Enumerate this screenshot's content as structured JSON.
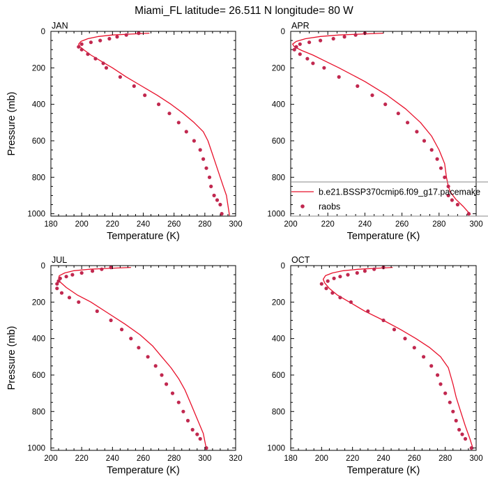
{
  "title": "Miami_FL  latitude= 26.511 N longitude= 80 W",
  "legend": {
    "model_label": "b.e21.BSSP370cmip6.f09_g17.pacemake",
    "obs_label": "raobs"
  },
  "colors": {
    "model": "#e8102a",
    "obs": "#c1284f",
    "axis": "#000000"
  },
  "chart_data": [
    {
      "type": "line",
      "panel": "JAN",
      "xlabel": "Temperature (K)",
      "ylabel": "Pressure (mb)",
      "xlim": [
        180,
        300
      ],
      "ylim": [
        1013,
        0
      ],
      "xticks": [
        "180",
        "200",
        "220",
        "240",
        "260",
        "280",
        "300"
      ],
      "yticks": [
        "0",
        "200",
        "400",
        "600",
        "800",
        "1000"
      ],
      "series": [
        {
          "name": "b.e21.BSSP370cmip6.f09_g17.pacemake",
          "kind": "line",
          "x": [
            244,
            232,
            220,
            211,
            204,
            199.5,
            198,
            199,
            202,
            206,
            212,
            220,
            229,
            239,
            249,
            258,
            266,
            273,
            279,
            282,
            284,
            286,
            288,
            290,
            292,
            294,
            296
          ],
          "y": [
            10,
            15,
            20,
            28,
            40,
            55,
            70,
            85,
            105,
            130,
            160,
            200,
            250,
            300,
            350,
            400,
            450,
            500,
            550,
            600,
            650,
            700,
            750,
            800,
            850,
            900,
            1010
          ]
        },
        {
          "name": "raobs",
          "kind": "points",
          "x": [
            237,
            229,
            223,
            218,
            212,
            206,
            200,
            198,
            200,
            204,
            209,
            214,
            216,
            225,
            234,
            241,
            250,
            257,
            263,
            268,
            273,
            277,
            279,
            281,
            283,
            284,
            286,
            288,
            290,
            291
          ],
          "y": [
            10,
            20,
            30,
            40,
            50,
            60,
            70,
            85,
            100,
            125,
            150,
            175,
            200,
            250,
            300,
            350,
            400,
            450,
            500,
            550,
            600,
            650,
            700,
            750,
            800,
            850,
            900,
            925,
            950,
            1000
          ]
        }
      ]
    },
    {
      "type": "line",
      "panel": "APR",
      "xlabel": "Temperature (K)",
      "ylabel": "",
      "xlim": [
        200,
        300
      ],
      "ylim": [
        1013,
        0
      ],
      "xticks": [
        "200",
        "220",
        "240",
        "260",
        "280",
        "300"
      ],
      "yticks": [
        "0",
        "200",
        "400",
        "600",
        "800",
        "1000"
      ],
      "series": [
        {
          "name": "b.e21.BSSP370cmip6.f09_g17.pacemake",
          "kind": "line",
          "x": [
            250,
            238,
            226,
            216,
            208,
            203,
            201,
            202,
            206,
            212,
            219,
            226,
            240,
            252,
            262,
            270,
            276,
            280,
            283,
            284,
            285,
            286,
            289,
            293,
            297
          ],
          "y": [
            10,
            15,
            20,
            28,
            40,
            55,
            70,
            85,
            105,
            130,
            165,
            200,
            275,
            350,
            425,
            500,
            575,
            650,
            725,
            800,
            850,
            880,
            920,
            960,
            1005
          ]
        },
        {
          "name": "raobs",
          "kind": "points",
          "x": [
            240,
            235,
            229,
            223,
            216,
            210,
            205,
            203,
            202,
            205,
            209,
            212,
            218,
            226,
            236,
            244,
            251,
            258,
            263,
            268,
            272,
            276,
            279,
            281,
            283,
            285,
            285,
            287,
            290,
            296
          ],
          "y": [
            10,
            20,
            30,
            40,
            50,
            60,
            70,
            85,
            100,
            125,
            150,
            175,
            200,
            250,
            300,
            350,
            400,
            450,
            500,
            550,
            600,
            650,
            700,
            750,
            800,
            850,
            900,
            925,
            950,
            1000
          ]
        }
      ]
    },
    {
      "type": "line",
      "panel": "JUL",
      "xlabel": "Temperature (K)",
      "ylabel": "Pressure (mb)",
      "xlim": [
        200,
        320
      ],
      "ylim": [
        1013,
        0
      ],
      "xticks": [
        "200",
        "220",
        "240",
        "260",
        "280",
        "300",
        "320"
      ],
      "yticks": [
        "0",
        "200",
        "400",
        "600",
        "800",
        "1000"
      ],
      "series": [
        {
          "name": "b.e21.BSSP370cmip6.f09_g17.pacemake",
          "kind": "line",
          "x": [
            252,
            238,
            225,
            215,
            209,
            205.5,
            205,
            206,
            210,
            217,
            226,
            237,
            248,
            258,
            266,
            272,
            278,
            283,
            287,
            291,
            295,
            299,
            301
          ],
          "y": [
            10,
            15,
            20,
            28,
            40,
            55,
            70,
            90,
            120,
            160,
            200,
            260,
            320,
            380,
            440,
            500,
            560,
            620,
            680,
            760,
            840,
            920,
            1005
          ]
        },
        {
          "name": "raobs",
          "kind": "points",
          "x": [
            239,
            233,
            227,
            220,
            214,
            210,
            206,
            205,
            204,
            204,
            207,
            212,
            218,
            230,
            239,
            246,
            252,
            257,
            263,
            268,
            272,
            275,
            279,
            283,
            286,
            289,
            292,
            295,
            297,
            301
          ],
          "y": [
            10,
            20,
            30,
            40,
            50,
            60,
            70,
            85,
            100,
            125,
            150,
            175,
            200,
            250,
            300,
            350,
            400,
            450,
            500,
            550,
            600,
            650,
            700,
            750,
            800,
            850,
            900,
            925,
            950,
            1000
          ]
        }
      ]
    },
    {
      "type": "line",
      "panel": "OCT",
      "xlabel": "Temperature (K)",
      "ylabel": "",
      "xlim": [
        180,
        300
      ],
      "ylim": [
        1013,
        0
      ],
      "xticks": [
        "180",
        "200",
        "220",
        "240",
        "260",
        "280",
        "300"
      ],
      "yticks": [
        "0",
        "200",
        "400",
        "600",
        "800",
        "1000"
      ],
      "series": [
        {
          "name": "b.e21.BSSP370cmip6.f09_g17.pacemake",
          "kind": "line",
          "x": [
            246,
            235,
            224,
            214,
            207,
            202.5,
            201,
            202,
            205,
            210,
            218,
            228,
            240,
            251,
            261,
            270,
            277,
            282,
            285,
            287,
            290,
            293,
            296,
            298
          ],
          "y": [
            10,
            15,
            20,
            28,
            40,
            55,
            75,
            95,
            125,
            160,
            200,
            250,
            300,
            350,
            400,
            450,
            500,
            560,
            650,
            720,
            800,
            880,
            950,
            1005
          ]
        },
        {
          "name": "raobs",
          "kind": "points",
          "x": [
            240,
            234,
            228,
            223,
            217,
            212,
            208,
            204,
            200,
            203,
            207,
            212,
            219,
            230,
            240,
            247,
            254,
            260,
            266,
            271,
            275,
            277,
            280,
            283,
            285,
            287,
            289,
            291,
            293,
            297
          ],
          "y": [
            10,
            20,
            30,
            40,
            50,
            60,
            70,
            85,
            100,
            125,
            150,
            175,
            200,
            250,
            300,
            350,
            400,
            450,
            500,
            550,
            600,
            650,
            700,
            750,
            800,
            850,
            900,
            925,
            950,
            1000
          ]
        }
      ]
    }
  ]
}
